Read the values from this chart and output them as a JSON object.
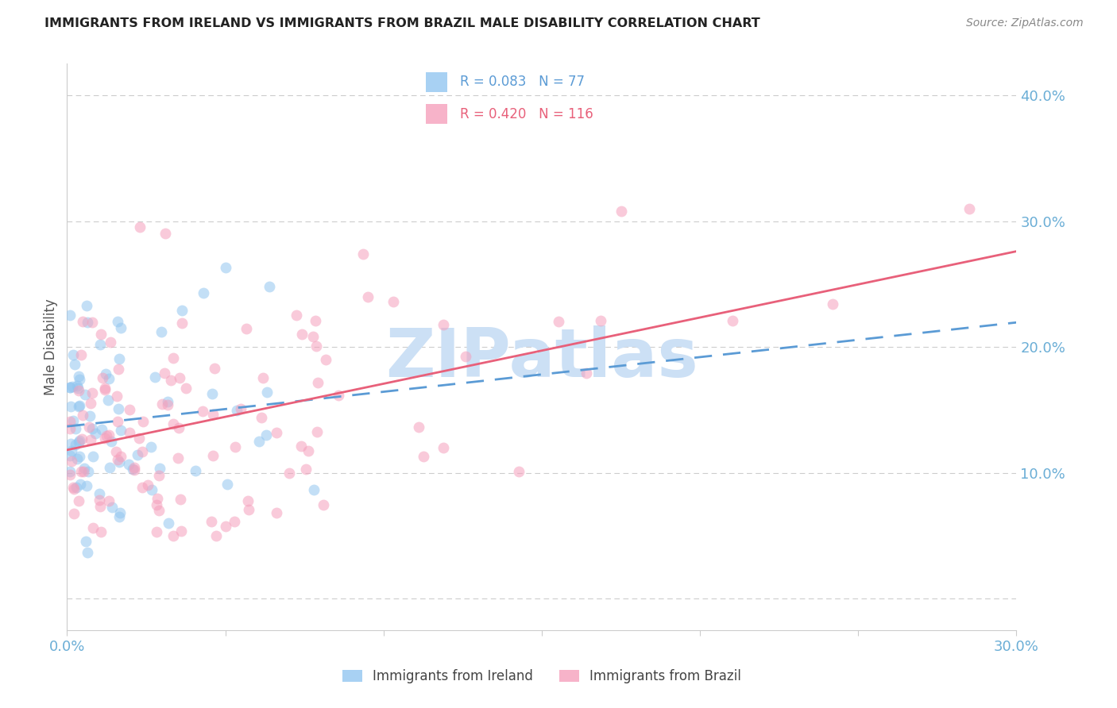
{
  "title": "IMMIGRANTS FROM IRELAND VS IMMIGRANTS FROM BRAZIL MALE DISABILITY CORRELATION CHART",
  "source": "Source: ZipAtlas.com",
  "ylabel": "Male Disability",
  "xlim": [
    0.0,
    0.3
  ],
  "ylim": [
    -0.025,
    0.425
  ],
  "ytick_vals": [
    0.0,
    0.1,
    0.2,
    0.3,
    0.4
  ],
  "xtick_vals": [
    0.0,
    0.05,
    0.1,
    0.15,
    0.2,
    0.25,
    0.3
  ],
  "xtick_labels": [
    "0.0%",
    "",
    "",
    "",
    "",
    "",
    "30.0%"
  ],
  "ytick_labels": [
    "",
    "10.0%",
    "20.0%",
    "30.0%",
    "40.0%"
  ],
  "tick_color": "#6baed6",
  "grid_color": "#cccccc",
  "background_color": "#ffffff",
  "ireland_dot_color": "#93c6f0",
  "brazil_dot_color": "#f5a0bc",
  "ireland_line_color": "#5b9bd5",
  "brazil_line_color": "#e8607a",
  "ireland_R": 0.083,
  "ireland_N": 77,
  "brazil_R": 0.42,
  "brazil_N": 116,
  "watermark_text": "ZIPatlas",
  "watermark_color": "#cce0f5",
  "legend_label_ireland": "Immigrants from Ireland",
  "legend_label_brazil": "Immigrants from Brazil",
  "legend_R_ireland": "R = 0.083",
  "legend_N_ireland": "N = 77",
  "legend_R_brazil": "R = 0.420",
  "legend_N_brazil": "N = 116",
  "ireland_seed": 42,
  "brazil_seed": 99,
  "dot_size": 100,
  "dot_alpha": 0.55,
  "line_width": 2.0
}
